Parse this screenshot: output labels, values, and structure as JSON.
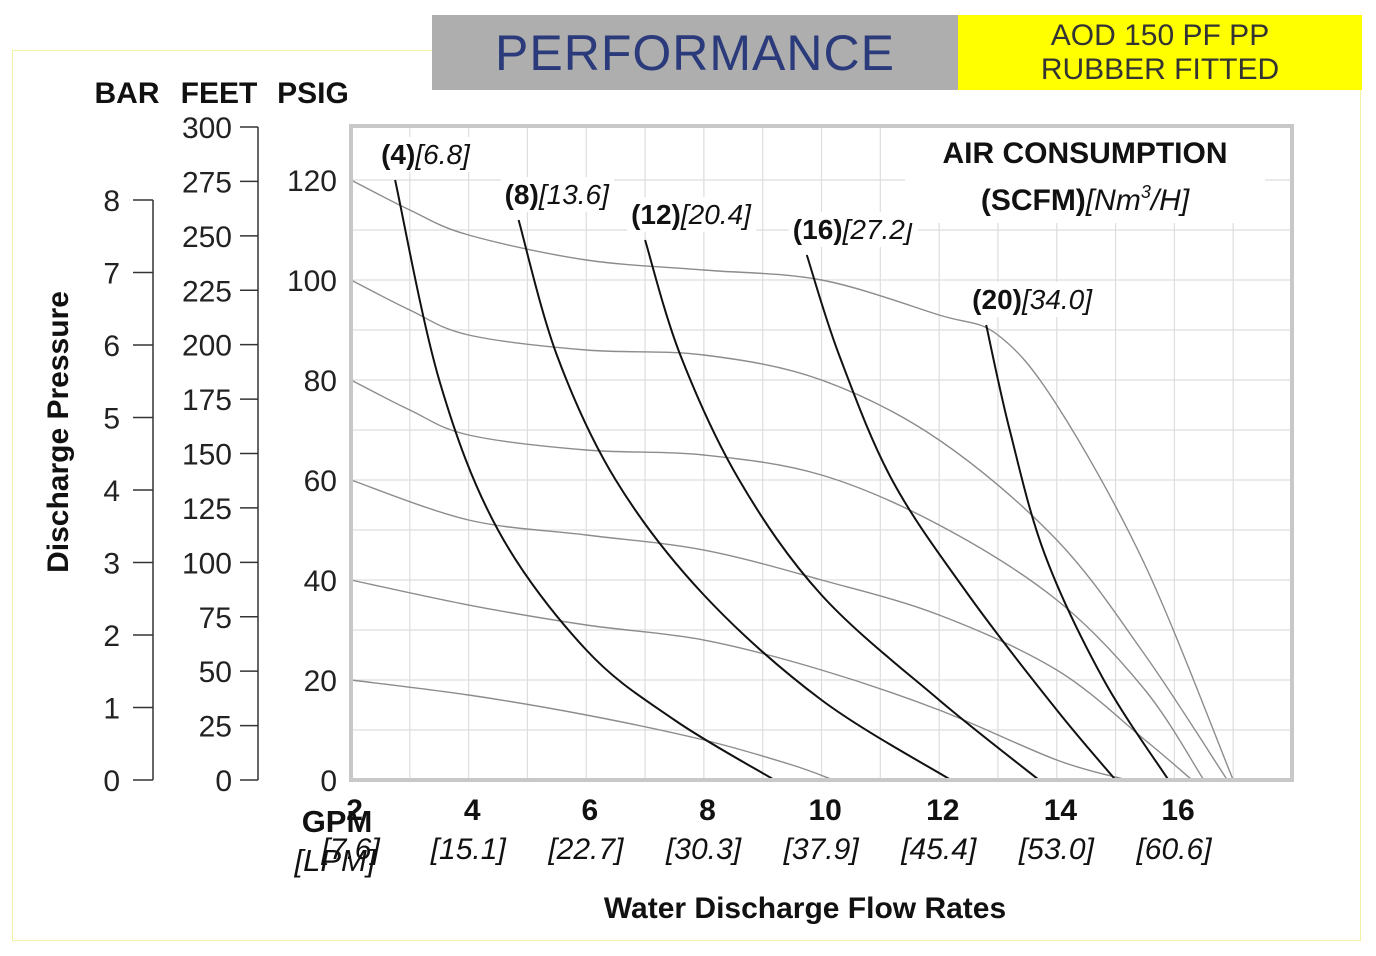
{
  "header": {
    "title": "PERFORMANCE",
    "model_line1": "AOD 150 PF PP",
    "model_line2": "RUBBER FITTED"
  },
  "colors": {
    "title_bar": "#aeaeae",
    "title_text": "#2a3a7a",
    "model_box": "#ffff00",
    "air_curve": "#111111",
    "head_curve": "#8c8c8c",
    "grid": "#dddddd",
    "plot_border": "#c8c8c8"
  },
  "chart_data": {
    "type": "line",
    "xlabel": "Water Discharge Flow Rates",
    "x_unit_primary": "GPM",
    "x_unit_secondary": "[LPM]",
    "xlim": [
      0,
      16
    ],
    "x_ticks": [
      {
        "gpm": "2",
        "lpm": "[7.6]"
      },
      {
        "gpm": "4",
        "lpm": "[15.1]"
      },
      {
        "gpm": "6",
        "lpm": "[22.7]"
      },
      {
        "gpm": "8",
        "lpm": "[30.3]"
      },
      {
        "gpm": "10",
        "lpm": "[37.9]"
      },
      {
        "gpm": "12",
        "lpm": "[45.4]"
      },
      {
        "gpm": "14",
        "lpm": "[53.0]"
      },
      {
        "gpm": "16",
        "lpm": "[60.6]"
      }
    ],
    "ylabel": "Discharge Pressure",
    "unit_headers": [
      "BAR",
      "FEET",
      "PSIG"
    ],
    "ylim_psig": [
      0,
      130
    ],
    "psig_ticks": [
      "0",
      "20",
      "40",
      "60",
      "80",
      "100",
      "120"
    ],
    "feet_ticks": [
      "0",
      "25",
      "50",
      "75",
      "100",
      "125",
      "150",
      "175",
      "200",
      "225",
      "250",
      "275",
      "300"
    ],
    "bar_ticks": [
      "0",
      "1",
      "2",
      "3",
      "4",
      "5",
      "6",
      "7",
      "8"
    ],
    "air_legend_line1": "AIR CONSUMPTION",
    "air_legend_line2_bold": "(SCFM)",
    "air_legend_line2_italic_a": "[Nm",
    "air_legend_line2_sup": "3",
    "air_legend_line2_italic_b": "/H]",
    "pressure_curves": [
      {
        "inlet_psig": 20,
        "points": [
          [
            0,
            20
          ],
          [
            2,
            17
          ],
          [
            4,
            13
          ],
          [
            6,
            8
          ],
          [
            7.5,
            3
          ],
          [
            8.2,
            0
          ]
        ]
      },
      {
        "inlet_psig": 40,
        "points": [
          [
            0,
            40
          ],
          [
            2,
            35
          ],
          [
            4,
            31
          ],
          [
            6,
            28
          ],
          [
            8,
            22
          ],
          [
            10,
            14
          ],
          [
            12,
            4
          ],
          [
            13.2,
            0
          ]
        ]
      },
      {
        "inlet_psig": 60,
        "points": [
          [
            0,
            60
          ],
          [
            2,
            52
          ],
          [
            4,
            49
          ],
          [
            6,
            46
          ],
          [
            8,
            40
          ],
          [
            10,
            33
          ],
          [
            12,
            22
          ],
          [
            13.5,
            8
          ],
          [
            14.3,
            0
          ]
        ]
      },
      {
        "inlet_psig": 80,
        "points": [
          [
            0,
            80
          ],
          [
            1,
            74
          ],
          [
            2,
            69
          ],
          [
            4,
            66
          ],
          [
            6,
            65
          ],
          [
            8,
            61
          ],
          [
            10,
            51
          ],
          [
            12,
            36
          ],
          [
            13.5,
            18
          ],
          [
            14.5,
            0
          ]
        ]
      },
      {
        "inlet_psig": 100,
        "points": [
          [
            0,
            100
          ],
          [
            1,
            94
          ],
          [
            2,
            89
          ],
          [
            4,
            86
          ],
          [
            6,
            85
          ],
          [
            8,
            80
          ],
          [
            10,
            68
          ],
          [
            12,
            48
          ],
          [
            13.5,
            25
          ],
          [
            14.9,
            0
          ]
        ]
      },
      {
        "inlet_psig": 120,
        "points": [
          [
            0,
            120
          ],
          [
            1,
            114
          ],
          [
            2,
            109
          ],
          [
            4,
            104
          ],
          [
            6,
            102
          ],
          [
            8,
            100
          ],
          [
            10,
            93
          ],
          [
            11,
            89
          ],
          [
            12,
            75
          ],
          [
            13.5,
            43
          ],
          [
            15,
            0
          ]
        ]
      }
    ],
    "air_curves": [
      {
        "scfm": "(4)",
        "nm3h": "[6.8]",
        "points": [
          [
            0.75,
            120
          ],
          [
            1.5,
            80
          ],
          [
            2.5,
            50
          ],
          [
            4,
            26
          ],
          [
            5.5,
            12
          ],
          [
            7.2,
            0
          ]
        ]
      },
      {
        "scfm": "(8)",
        "nm3h": "[13.6]",
        "points": [
          [
            2.85,
            112
          ],
          [
            3.5,
            85
          ],
          [
            4.5,
            60
          ],
          [
            6,
            37
          ],
          [
            8,
            16
          ],
          [
            10.2,
            0
          ]
        ]
      },
      {
        "scfm": "(12)",
        "nm3h": "[20.4]",
        "points": [
          [
            5,
            108
          ],
          [
            5.6,
            85
          ],
          [
            6.6,
            60
          ],
          [
            8,
            37
          ],
          [
            10,
            16
          ],
          [
            11.7,
            0
          ]
        ]
      },
      {
        "scfm": "(16)",
        "nm3h": "[27.2]",
        "points": [
          [
            7.75,
            105
          ],
          [
            8.3,
            85
          ],
          [
            9.2,
            60
          ],
          [
            10.5,
            37
          ],
          [
            12,
            14
          ],
          [
            13,
            0
          ]
        ]
      },
      {
        "scfm": "(20)",
        "nm3h": "[34.0]",
        "points": [
          [
            10.8,
            91
          ],
          [
            11.2,
            70
          ],
          [
            11.8,
            45
          ],
          [
            12.8,
            20
          ],
          [
            13.9,
            0
          ]
        ]
      }
    ]
  }
}
